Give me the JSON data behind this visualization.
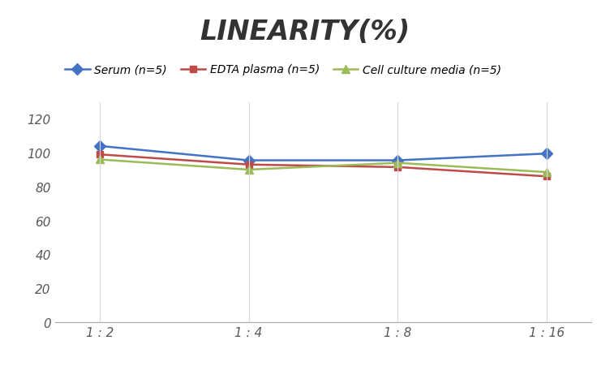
{
  "title": "LINEARITY(%)",
  "title_fontsize": 24,
  "title_fontstyle": "italic",
  "title_fontweight": "bold",
  "x_labels": [
    "1 : 2",
    "1 : 4",
    "1 : 8",
    "1 : 16"
  ],
  "x_positions": [
    0,
    1,
    2,
    3
  ],
  "series": [
    {
      "label": "Serum (n=5)",
      "values": [
        104,
        95.5,
        95.5,
        99.5
      ],
      "color": "#4472C4",
      "marker": "D",
      "markersize": 7,
      "linewidth": 1.8
    },
    {
      "label": "EDTA plasma (n=5)",
      "values": [
        99,
        93,
        91.5,
        86
      ],
      "color": "#BE4B48",
      "marker": "s",
      "markersize": 6,
      "linewidth": 1.8
    },
    {
      "label": "Cell culture media (n=5)",
      "values": [
        96,
        90,
        94,
        88.5
      ],
      "color": "#9BBB59",
      "marker": "^",
      "markersize": 7,
      "linewidth": 1.8
    }
  ],
  "ylim": [
    0,
    130
  ],
  "yticks": [
    0,
    20,
    40,
    60,
    80,
    100,
    120
  ],
  "grid_color": "#D9D9D9",
  "background_color": "#FFFFFF",
  "legend_fontsize": 10,
  "tick_fontsize": 11,
  "tick_color": "#595959"
}
